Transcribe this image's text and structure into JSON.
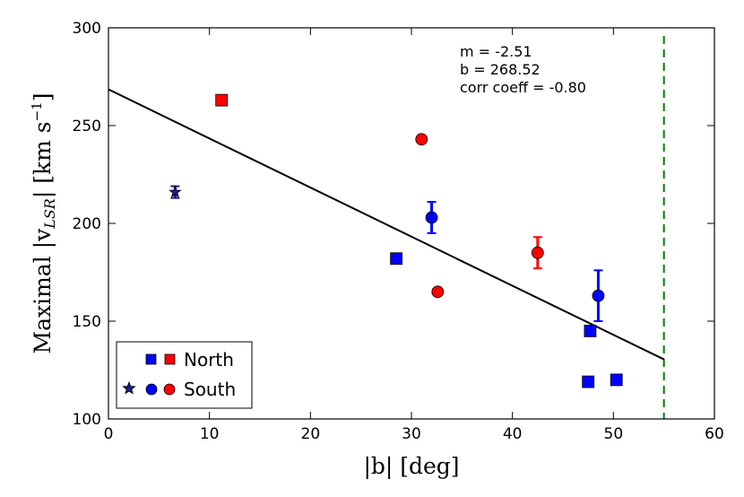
{
  "chart_data": {
    "type": "scatter",
    "xlabel": "|b| [deg]",
    "ylabel_parts": {
      "prefix": "Maximal |v",
      "subscript": "LSR",
      "suffix": "| [km s",
      "superscript": "−1",
      "close": "]"
    },
    "xlim": [
      0,
      60
    ],
    "ylim": [
      100,
      300
    ],
    "xticks": [
      0,
      10,
      20,
      30,
      40,
      50,
      60
    ],
    "yticks": [
      100,
      150,
      200,
      250,
      300
    ],
    "colors": {
      "north_blue": "#0000ff",
      "north_red": "#ff0000",
      "south_blue": "#0000ff",
      "south_red": "#ff0000",
      "star": "#1a1a8c",
      "fit": "#000000",
      "limit": "#008000"
    },
    "fit": {
      "m": -2.51,
      "b": 268.52,
      "x_range": [
        0,
        55
      ]
    },
    "limit_line_x": 55,
    "annotations": [
      "m = -2.51",
      "b = 268.52",
      "corr coeff = -0.80"
    ],
    "series": [
      {
        "name": "North (blue)",
        "marker": "square",
        "color": "#0000ff",
        "points": [
          {
            "x": 28.5,
            "y": 182
          },
          {
            "x": 47.7,
            "y": 145
          },
          {
            "x": 47.5,
            "y": 119
          },
          {
            "x": 50.3,
            "y": 120
          }
        ]
      },
      {
        "name": "North (red)",
        "marker": "square",
        "color": "#ff0000",
        "points": [
          {
            "x": 11.2,
            "y": 263
          }
        ]
      },
      {
        "name": "South (star)",
        "marker": "star",
        "color": "#1a1a8c",
        "points": [
          {
            "x": 6.6,
            "y": 216,
            "err": 3
          }
        ]
      },
      {
        "name": "South (blue)",
        "marker": "circle",
        "color": "#0000ff",
        "points": [
          {
            "x": 32.0,
            "y": 203,
            "err": 8
          },
          {
            "x": 48.5,
            "y": 163,
            "err": 13
          }
        ]
      },
      {
        "name": "South (red)",
        "marker": "circle",
        "color": "#ff0000",
        "points": [
          {
            "x": 31.0,
            "y": 243
          },
          {
            "x": 32.6,
            "y": 165
          },
          {
            "x": 42.5,
            "y": 185,
            "err": 8
          }
        ]
      }
    ],
    "legend": {
      "position": "lower-left",
      "entries": [
        "North",
        "South"
      ]
    }
  }
}
